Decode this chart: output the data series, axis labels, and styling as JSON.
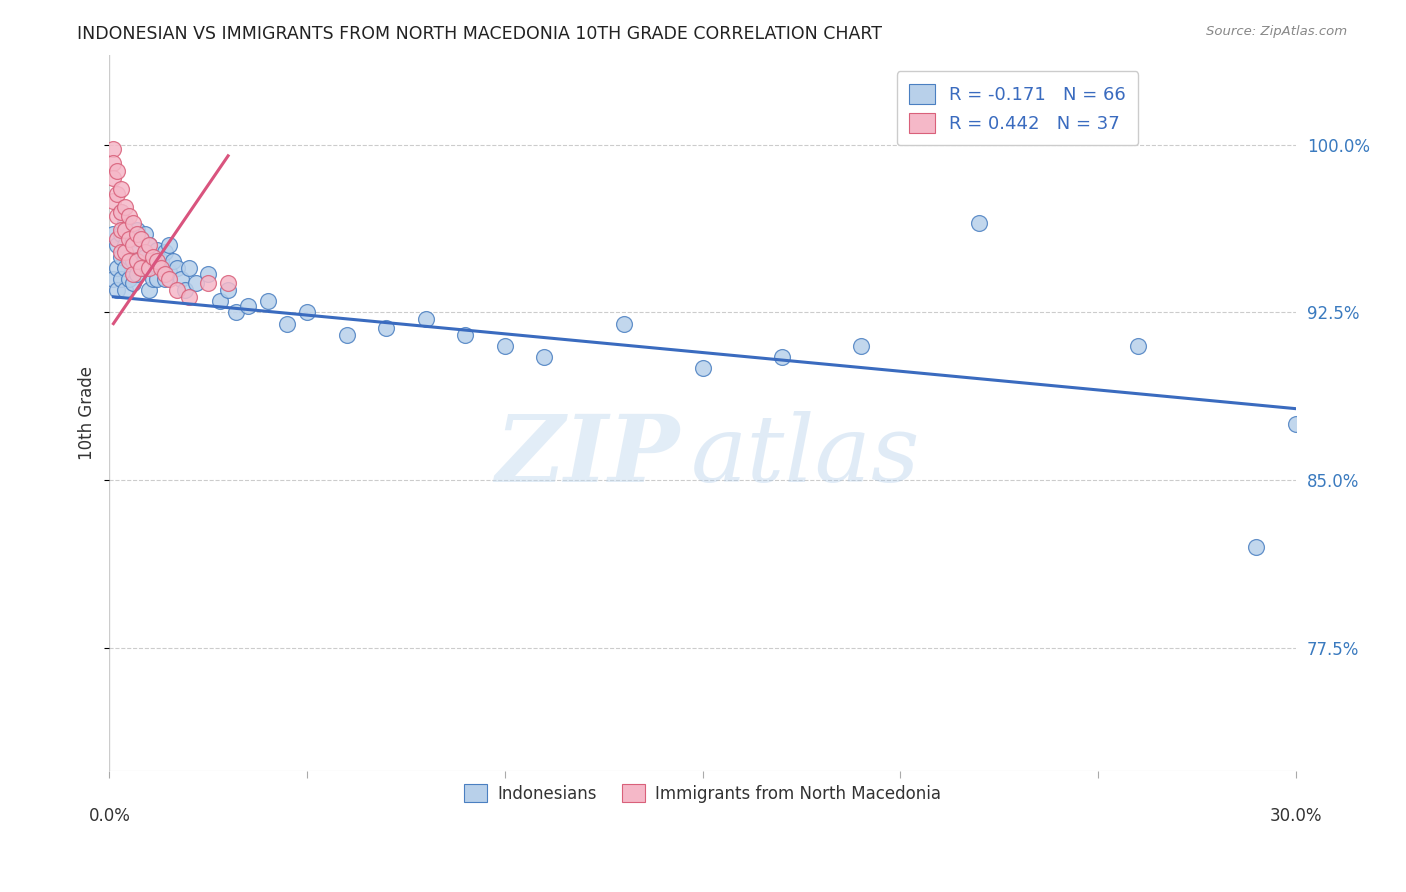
{
  "title": "INDONESIAN VS IMMIGRANTS FROM NORTH MACEDONIA 10TH GRADE CORRELATION CHART",
  "source": "Source: ZipAtlas.com",
  "ylabel": "10th Grade",
  "xlim": [
    0.0,
    0.3
  ],
  "ylim": [
    0.72,
    1.04
  ],
  "ytick_vals": [
    0.775,
    0.85,
    0.925,
    1.0
  ],
  "ytick_labels": [
    "77.5%",
    "85.0%",
    "92.5%",
    "100.0%"
  ],
  "xtick_vals": [
    0.0,
    0.05,
    0.1,
    0.15,
    0.2,
    0.25,
    0.3
  ],
  "legend_R_blue": "R = -0.171",
  "legend_N_blue": "N = 66",
  "legend_R_pink": "R = 0.442",
  "legend_N_pink": "N = 37",
  "blue_fill": "#b8d0ea",
  "blue_edge": "#4a7fc1",
  "pink_fill": "#f5b8c8",
  "pink_edge": "#d9607a",
  "line_blue_color": "#3a6bbf",
  "line_pink_color": "#d9547e",
  "indonesian_x": [
    0.001,
    0.001,
    0.002,
    0.002,
    0.002,
    0.003,
    0.003,
    0.003,
    0.003,
    0.004,
    0.004,
    0.004,
    0.004,
    0.005,
    0.005,
    0.005,
    0.006,
    0.006,
    0.006,
    0.007,
    0.007,
    0.007,
    0.008,
    0.008,
    0.009,
    0.009,
    0.01,
    0.01,
    0.01,
    0.011,
    0.011,
    0.012,
    0.012,
    0.013,
    0.014,
    0.014,
    0.015,
    0.015,
    0.016,
    0.017,
    0.018,
    0.019,
    0.02,
    0.022,
    0.025,
    0.028,
    0.03,
    0.032,
    0.035,
    0.04,
    0.045,
    0.05,
    0.06,
    0.07,
    0.08,
    0.09,
    0.1,
    0.11,
    0.13,
    0.15,
    0.17,
    0.19,
    0.22,
    0.26,
    0.29,
    0.3
  ],
  "indonesian_y": [
    0.96,
    0.94,
    0.955,
    0.945,
    0.935,
    0.97,
    0.96,
    0.95,
    0.94,
    0.965,
    0.955,
    0.945,
    0.935,
    0.96,
    0.95,
    0.94,
    0.958,
    0.948,
    0.938,
    0.962,
    0.952,
    0.942,
    0.958,
    0.945,
    0.96,
    0.95,
    0.955,
    0.945,
    0.935,
    0.95,
    0.94,
    0.953,
    0.94,
    0.948,
    0.952,
    0.94,
    0.955,
    0.943,
    0.948,
    0.945,
    0.94,
    0.935,
    0.945,
    0.938,
    0.942,
    0.93,
    0.935,
    0.925,
    0.928,
    0.93,
    0.92,
    0.925,
    0.915,
    0.918,
    0.922,
    0.915,
    0.91,
    0.905,
    0.92,
    0.9,
    0.905,
    0.91,
    0.965,
    0.91,
    0.82,
    0.875
  ],
  "macedonia_x": [
    0.001,
    0.001,
    0.001,
    0.001,
    0.002,
    0.002,
    0.002,
    0.002,
    0.003,
    0.003,
    0.003,
    0.003,
    0.004,
    0.004,
    0.004,
    0.005,
    0.005,
    0.005,
    0.006,
    0.006,
    0.006,
    0.007,
    0.007,
    0.008,
    0.008,
    0.009,
    0.01,
    0.01,
    0.011,
    0.012,
    0.013,
    0.014,
    0.015,
    0.017,
    0.02,
    0.025,
    0.03
  ],
  "macedonia_y": [
    0.998,
    0.992,
    0.985,
    0.975,
    0.988,
    0.978,
    0.968,
    0.958,
    0.98,
    0.97,
    0.962,
    0.952,
    0.972,
    0.962,
    0.952,
    0.968,
    0.958,
    0.948,
    0.965,
    0.955,
    0.942,
    0.96,
    0.948,
    0.958,
    0.945,
    0.952,
    0.955,
    0.945,
    0.95,
    0.948,
    0.945,
    0.942,
    0.94,
    0.935,
    0.932,
    0.938,
    0.938
  ],
  "blue_line_x0": 0.001,
  "blue_line_x1": 0.3,
  "blue_line_y0": 0.932,
  "blue_line_y1": 0.882,
  "pink_line_x0": 0.001,
  "pink_line_x1": 0.03,
  "pink_line_y0": 0.92,
  "pink_line_y1": 0.995,
  "watermark_zip": "ZIP",
  "watermark_atlas": "atlas",
  "grid_color": "#cccccc",
  "legend_label_blue": "Indonesians",
  "legend_label_pink": "Immigrants from North Macedonia"
}
